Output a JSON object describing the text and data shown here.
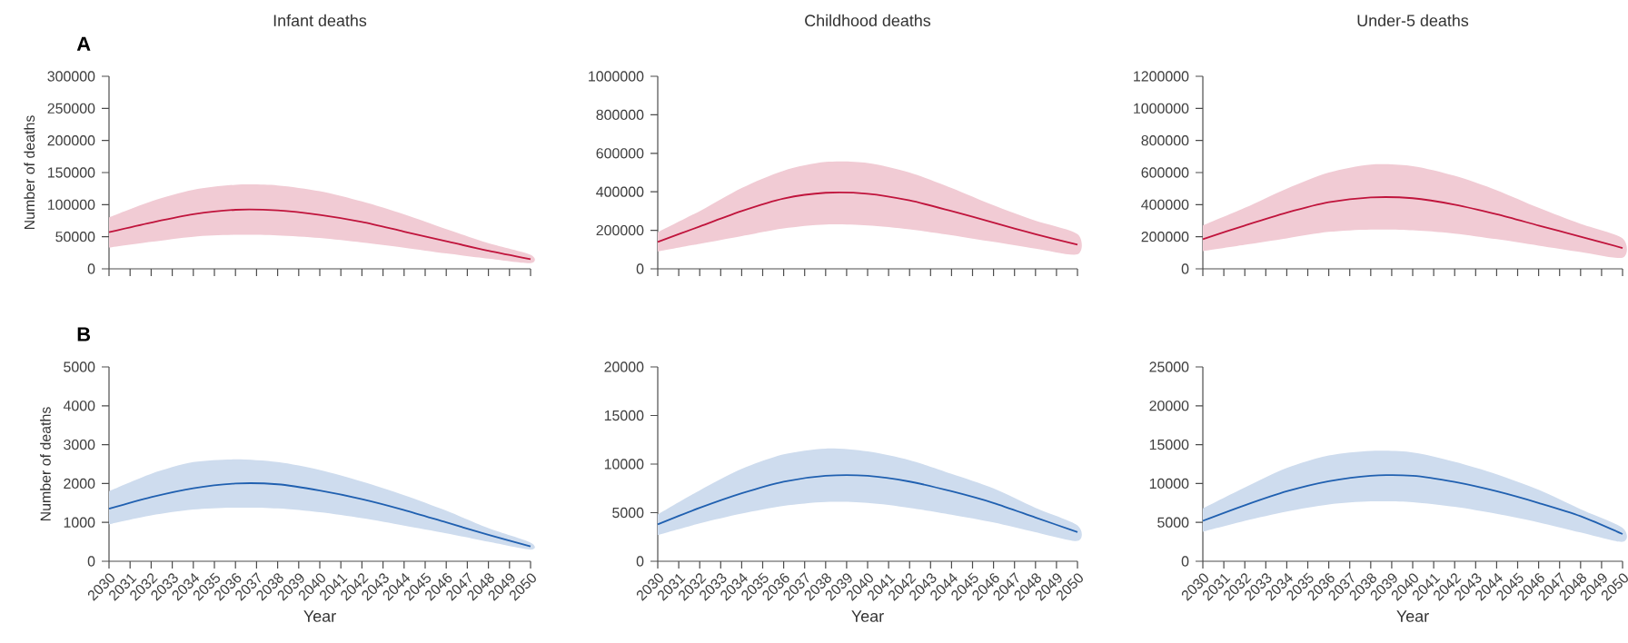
{
  "chart_data": [
    {
      "type": "line",
      "title": "Infant deaths",
      "ylabel": "Number of deaths",
      "annotations": [
        "A"
      ],
      "tick_labels": "y",
      "xlim": [
        2030,
        2050
      ],
      "xticks": [
        2030,
        2031,
        2032,
        2033,
        2034,
        2035,
        2036,
        2037,
        2038,
        2039,
        2040,
        2041,
        2042,
        2043,
        2044,
        2045,
        2046,
        2047,
        2048,
        2049,
        2050
      ],
      "ylim": [
        0,
        300000
      ],
      "yticks": [
        0,
        50000,
        100000,
        150000,
        200000,
        250000,
        300000
      ],
      "x": [
        2030,
        2032,
        2034,
        2036,
        2038,
        2040,
        2042,
        2044,
        2046,
        2048,
        2050
      ],
      "series": [
        {
          "color": "#c0143c",
          "values": [
            57000,
            72000,
            85000,
            92000,
            91000,
            84000,
            73000,
            58000,
            43000,
            28000,
            15000
          ],
          "lower": [
            33000,
            42000,
            50000,
            53000,
            52000,
            48000,
            41000,
            33000,
            24000,
            16000,
            9000
          ],
          "upper": [
            80000,
            105000,
            123000,
            131000,
            130000,
            121000,
            105000,
            85000,
            62000,
            40000,
            22000
          ]
        }
      ]
    },
    {
      "type": "line",
      "title": "Childhood deaths",
      "tick_labels": "y",
      "xlim": [
        2030,
        2050
      ],
      "xticks": [
        2030,
        2031,
        2032,
        2033,
        2034,
        2035,
        2036,
        2037,
        2038,
        2039,
        2040,
        2041,
        2042,
        2043,
        2044,
        2045,
        2046,
        2047,
        2048,
        2049,
        2050
      ],
      "ylim": [
        0,
        1000000
      ],
      "yticks": [
        0,
        200000,
        400000,
        600000,
        800000,
        1000000
      ],
      "x": [
        2030,
        2032,
        2034,
        2036,
        2038,
        2040,
        2042,
        2044,
        2046,
        2048,
        2050
      ],
      "series": [
        {
          "color": "#c0143c",
          "values": [
            140000,
            220000,
            300000,
            365000,
            395000,
            390000,
            355000,
            300000,
            240000,
            180000,
            125000
          ],
          "lower": [
            90000,
            130000,
            170000,
            210000,
            230000,
            225000,
            205000,
            175000,
            140000,
            105000,
            75000
          ],
          "upper": [
            190000,
            300000,
            420000,
            510000,
            555000,
            550000,
            500000,
            420000,
            330000,
            250000,
            180000
          ]
        }
      ]
    },
    {
      "type": "line",
      "title": "Under-5 deaths",
      "tick_labels": "y",
      "xlim": [
        2030,
        2050
      ],
      "xticks": [
        2030,
        2031,
        2032,
        2033,
        2034,
        2035,
        2036,
        2037,
        2038,
        2039,
        2040,
        2041,
        2042,
        2043,
        2044,
        2045,
        2046,
        2047,
        2048,
        2049,
        2050
      ],
      "ylim": [
        0,
        1200000
      ],
      "yticks": [
        0,
        200000,
        400000,
        600000,
        800000,
        1000000,
        1200000
      ],
      "x": [
        2030,
        2032,
        2034,
        2036,
        2038,
        2040,
        2042,
        2044,
        2046,
        2048,
        2050
      ],
      "series": [
        {
          "color": "#c0143c",
          "values": [
            185000,
            270000,
            350000,
            415000,
            445000,
            440000,
            400000,
            340000,
            270000,
            200000,
            130000
          ],
          "lower": [
            110000,
            150000,
            190000,
            230000,
            245000,
            240000,
            220000,
            185000,
            145000,
            105000,
            70000
          ],
          "upper": [
            270000,
            380000,
            500000,
            600000,
            650000,
            640000,
            580000,
            490000,
            380000,
            280000,
            190000
          ]
        }
      ]
    },
    {
      "type": "line",
      "xlabel": "Year",
      "ylabel": "Number of deaths",
      "annotations": [
        "B"
      ],
      "xlim": [
        2030,
        2050
      ],
      "xticks": [
        2030,
        2031,
        2032,
        2033,
        2034,
        2035,
        2036,
        2037,
        2038,
        2039,
        2040,
        2041,
        2042,
        2043,
        2044,
        2045,
        2046,
        2047,
        2048,
        2049,
        2050
      ],
      "ylim": [
        0,
        5000
      ],
      "yticks": [
        0,
        1000,
        2000,
        3000,
        4000,
        5000
      ],
      "x": [
        2030,
        2032,
        2034,
        2036,
        2038,
        2040,
        2042,
        2044,
        2046,
        2048,
        2050
      ],
      "series": [
        {
          "color": "#2060b0",
          "values": [
            1350,
            1650,
            1880,
            2000,
            1980,
            1820,
            1600,
            1320,
            1000,
            680,
            380
          ],
          "lower": [
            950,
            1180,
            1330,
            1380,
            1360,
            1260,
            1110,
            920,
            720,
            500,
            300
          ],
          "upper": [
            1800,
            2250,
            2550,
            2620,
            2550,
            2350,
            2050,
            1700,
            1300,
            850,
            480
          ]
        }
      ]
    },
    {
      "type": "line",
      "xlabel": "Year",
      "xlim": [
        2030,
        2050
      ],
      "xticks": [
        2030,
        2031,
        2032,
        2033,
        2034,
        2035,
        2036,
        2037,
        2038,
        2039,
        2040,
        2041,
        2042,
        2043,
        2044,
        2045,
        2046,
        2047,
        2048,
        2049,
        2050
      ],
      "ylim": [
        0,
        20000
      ],
      "yticks": [
        0,
        5000,
        10000,
        15000,
        20000
      ],
      "x": [
        2030,
        2032,
        2034,
        2036,
        2038,
        2040,
        2042,
        2044,
        2046,
        2048,
        2050
      ],
      "series": [
        {
          "color": "#2060b0",
          "values": [
            3800,
            5500,
            7000,
            8200,
            8800,
            8800,
            8200,
            7200,
            6000,
            4500,
            3000
          ],
          "lower": [
            2700,
            3900,
            4900,
            5700,
            6100,
            6000,
            5500,
            4800,
            4000,
            3000,
            2100
          ],
          "upper": [
            4800,
            7300,
            9500,
            11000,
            11600,
            11300,
            10400,
            9000,
            7500,
            5500,
            3700
          ]
        }
      ]
    },
    {
      "type": "line",
      "xlabel": "Year",
      "xlim": [
        2030,
        2050
      ],
      "xticks": [
        2030,
        2031,
        2032,
        2033,
        2034,
        2035,
        2036,
        2037,
        2038,
        2039,
        2040,
        2041,
        2042,
        2043,
        2044,
        2045,
        2046,
        2047,
        2048,
        2049,
        2050
      ],
      "ylim": [
        0,
        25000
      ],
      "yticks": [
        0,
        5000,
        10000,
        15000,
        20000,
        25000
      ],
      "x": [
        2030,
        2032,
        2034,
        2036,
        2038,
        2040,
        2042,
        2044,
        2046,
        2048,
        2050
      ],
      "series": [
        {
          "color": "#2060b0",
          "values": [
            5200,
            7200,
            9000,
            10300,
            11000,
            11000,
            10200,
            9000,
            7500,
            5800,
            3500
          ],
          "lower": [
            3800,
            5200,
            6400,
            7300,
            7700,
            7600,
            7000,
            6100,
            5000,
            3700,
            2500
          ],
          "upper": [
            6800,
            9500,
            12000,
            13600,
            14200,
            14000,
            12800,
            11200,
            9200,
            6700,
            4300
          ]
        }
      ]
    }
  ]
}
